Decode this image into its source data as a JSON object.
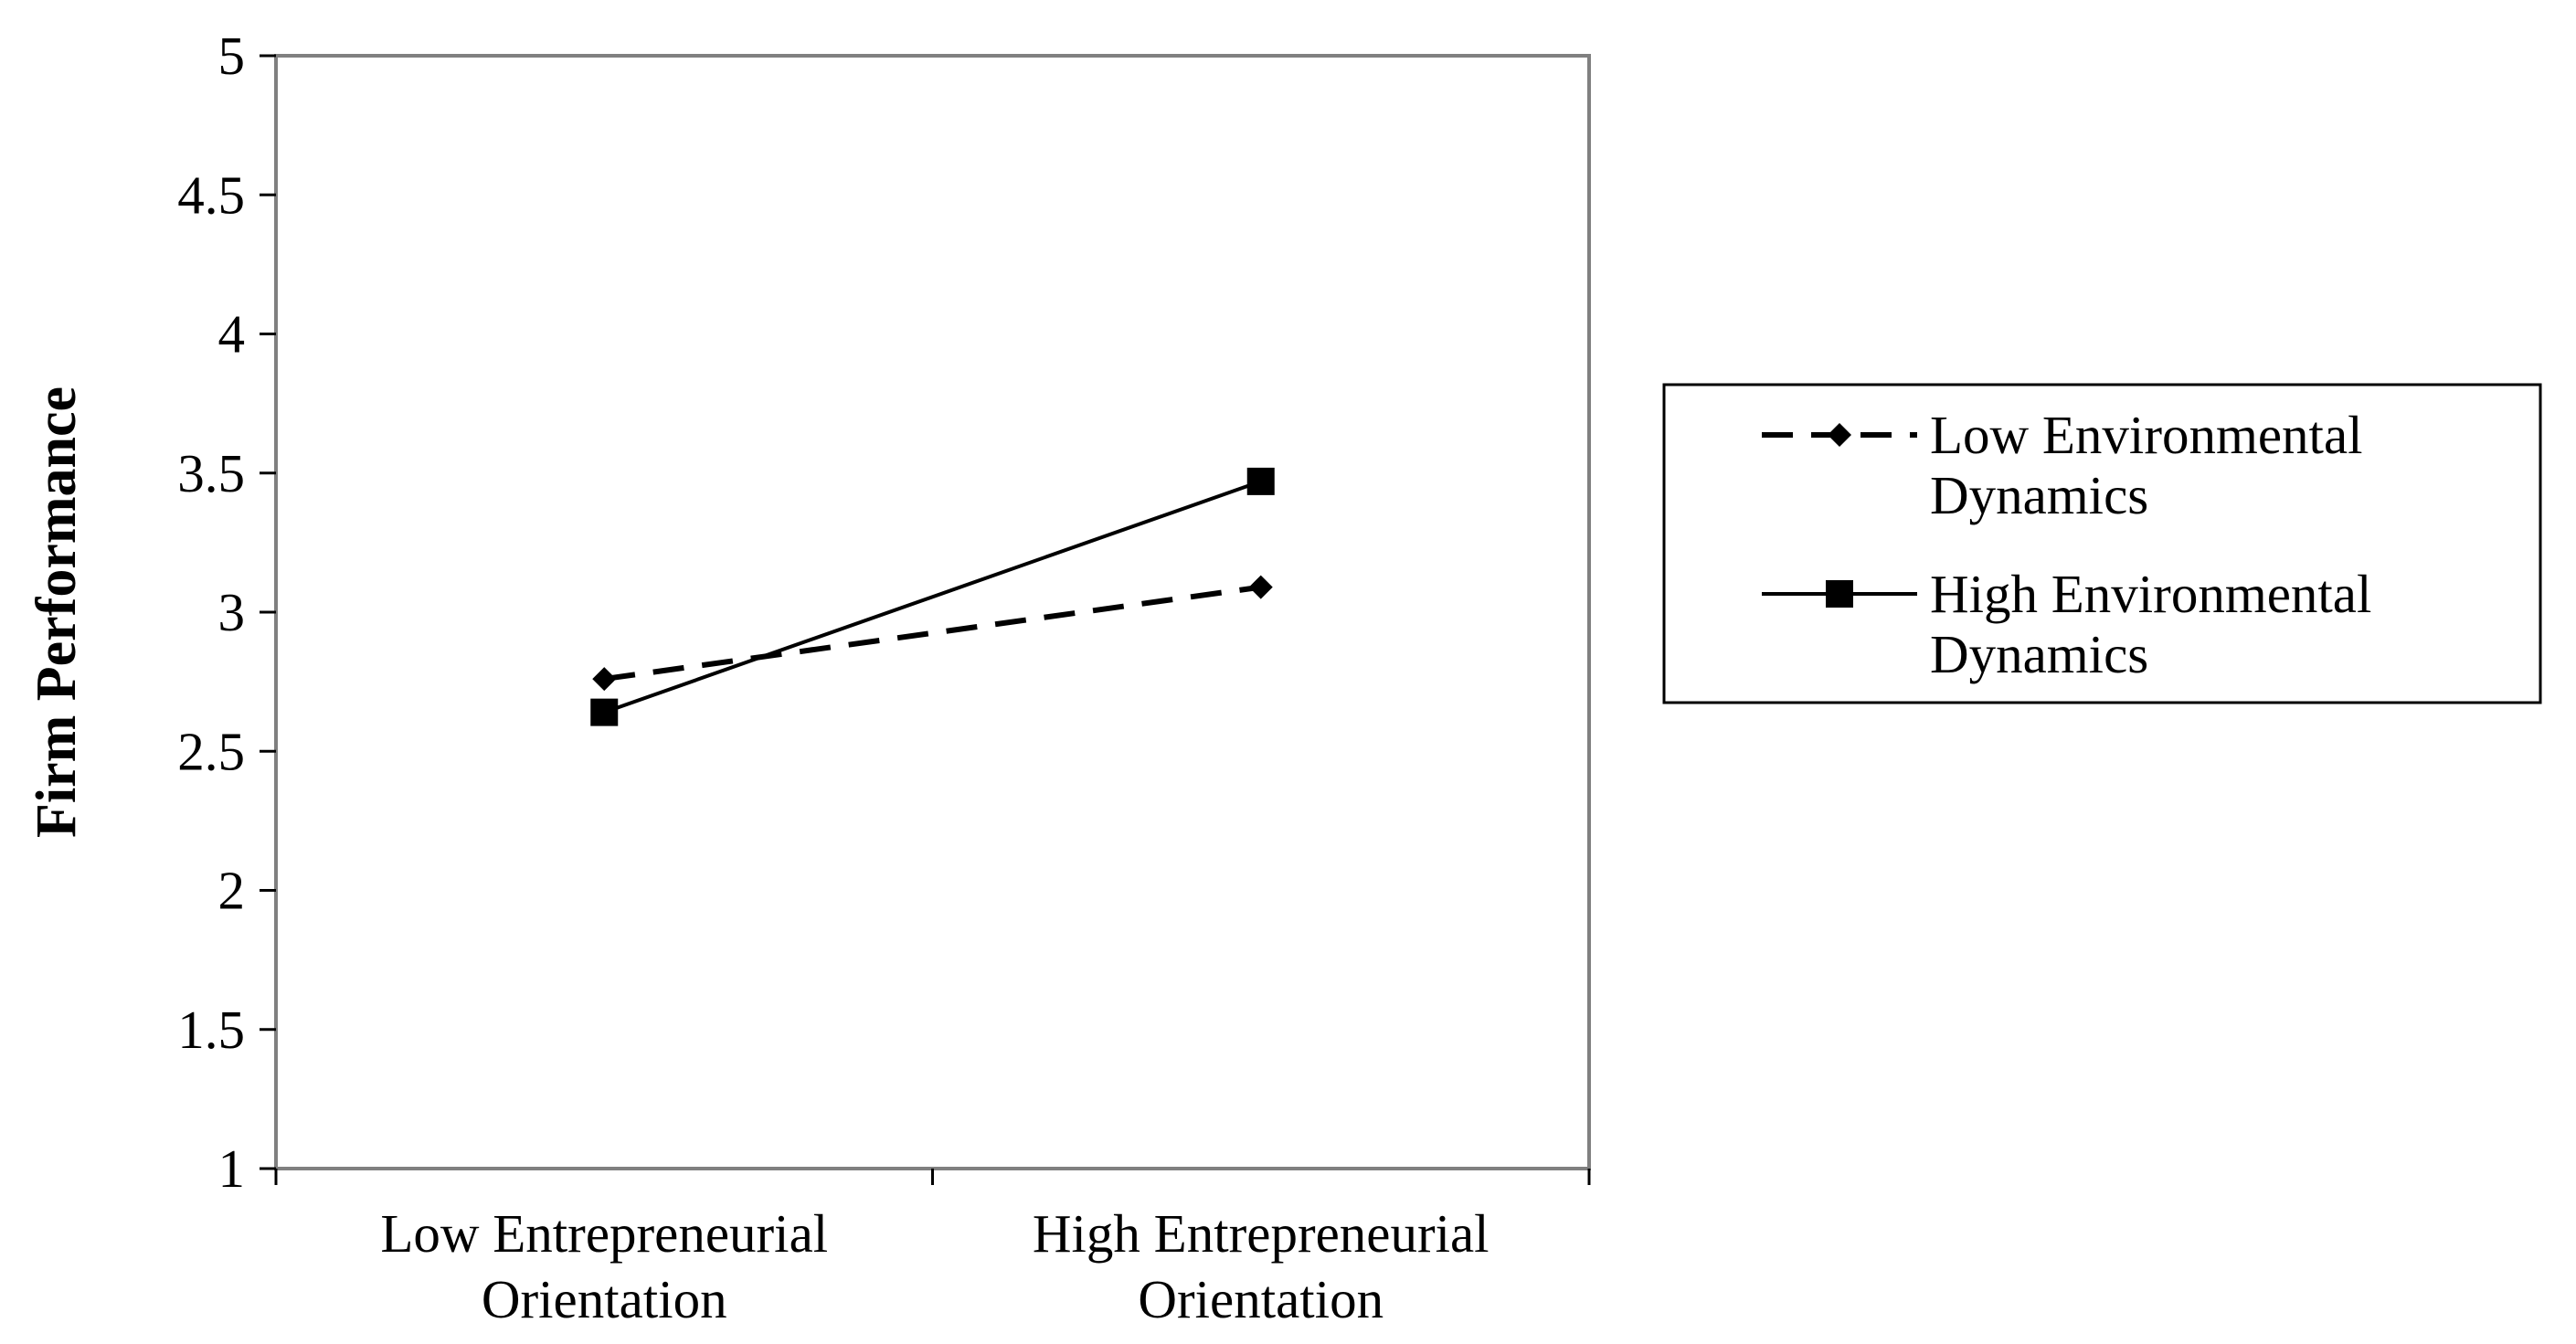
{
  "chart_data": {
    "type": "line",
    "title": "",
    "xlabel": "",
    "ylabel": "Firm Performance",
    "categories": [
      [
        "Low Entrepreneurial",
        "Orientation"
      ],
      [
        "High Entrepreneurial",
        "Orientation"
      ]
    ],
    "ylim": [
      1,
      5
    ],
    "yticks": [
      "1",
      "1.5",
      "2",
      "2.5",
      "3",
      "3.5",
      "4",
      "4.5",
      "5"
    ],
    "grid": false,
    "legend_position": "right",
    "series": [
      {
        "name": [
          "Low Environmental",
          "Dynamics"
        ],
        "values": [
          2.76,
          3.09
        ],
        "marker": "diamond",
        "line_style": "dashed",
        "color": "#000000"
      },
      {
        "name": [
          "High Environmental",
          "Dynamics"
        ],
        "values": [
          2.64,
          3.47
        ],
        "marker": "square",
        "line_style": "solid",
        "color": "#000000"
      }
    ]
  }
}
